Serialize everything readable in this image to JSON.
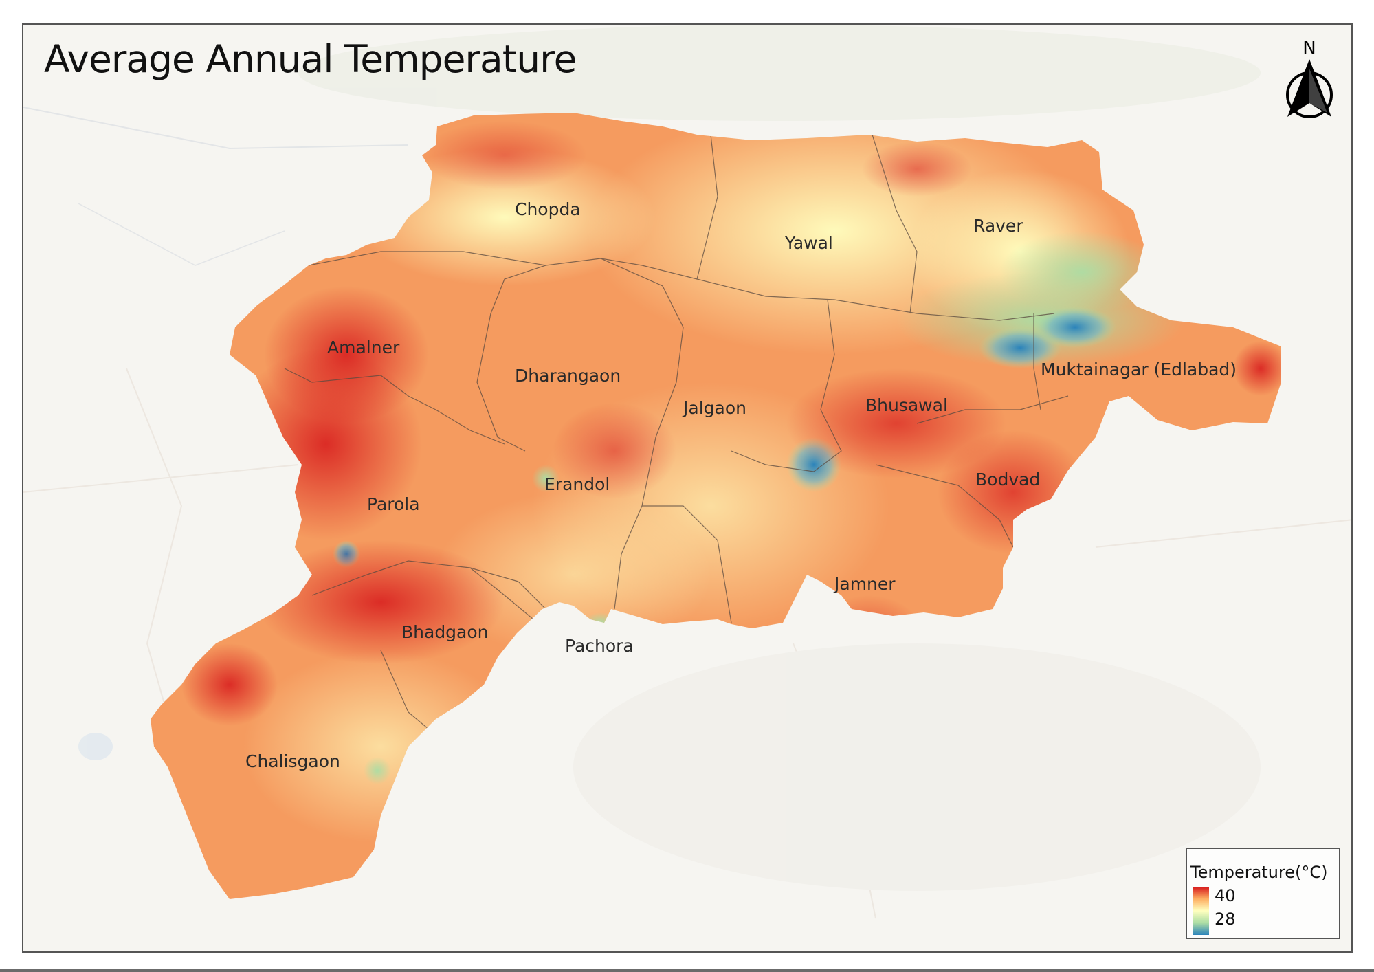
{
  "map": {
    "title": "Average Annual Temperature",
    "north_label": "N",
    "districts": [
      {
        "name": "Chopda"
      },
      {
        "name": "Yawal"
      },
      {
        "name": "Raver"
      },
      {
        "name": "Amalner"
      },
      {
        "name": "Dharangaon"
      },
      {
        "name": "Jalgaon"
      },
      {
        "name": "Bhusawal"
      },
      {
        "name": "Muktainagar (Edlabad)"
      },
      {
        "name": "Erandol"
      },
      {
        "name": "Bodvad"
      },
      {
        "name": "Parola"
      },
      {
        "name": "Jamner"
      },
      {
        "name": "Bhadgaon"
      },
      {
        "name": "Pachora"
      },
      {
        "name": "Chalisgaon"
      }
    ]
  },
  "legend": {
    "title": "Temperature(°C)",
    "max": "40",
    "min": "28",
    "colors": [
      "#d7191c",
      "#fdae61",
      "#ffffbf",
      "#abdda4",
      "#2b83ba"
    ]
  }
}
